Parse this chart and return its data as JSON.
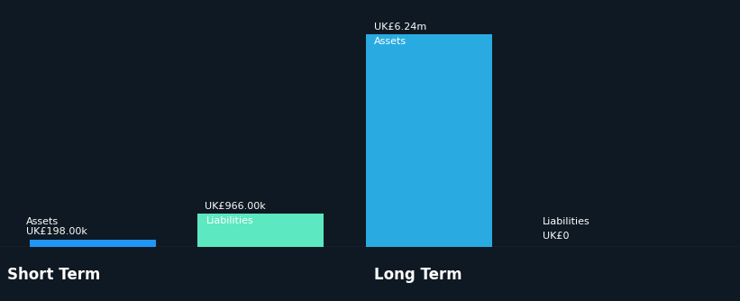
{
  "background_color": "#0f1923",
  "text_color": "#ffffff",
  "bars": [
    {
      "section": "Short Term",
      "label": "Assets",
      "value_label": "UK£198.00k",
      "value": 198000,
      "color": "#2196f3",
      "x_pos": 0
    },
    {
      "section": "Short Term",
      "label": "Liabilities",
      "value_label": "UK£966.00k",
      "value": 966000,
      "color": "#5ce8c0",
      "x_pos": 1
    },
    {
      "section": "Long Term",
      "label": "Assets",
      "value_label": "UK£6.24m",
      "value": 6240000,
      "color": "#29abe2",
      "x_pos": 2
    },
    {
      "section": "Long Term",
      "label": "Liabilities",
      "value_label": "UK£0",
      "value": 0,
      "color": "#29abe2",
      "x_pos": 3
    }
  ],
  "ylim": [
    0,
    6900000
  ],
  "xlim": [
    -0.55,
    3.85
  ],
  "bar_width": 0.75,
  "font_size_value": 8,
  "font_size_label": 8,
  "font_size_section": 12,
  "section_label_short": "Short Term",
  "section_label_long": "Long Term",
  "section_x_short": 0.5,
  "section_x_long": 2.5
}
